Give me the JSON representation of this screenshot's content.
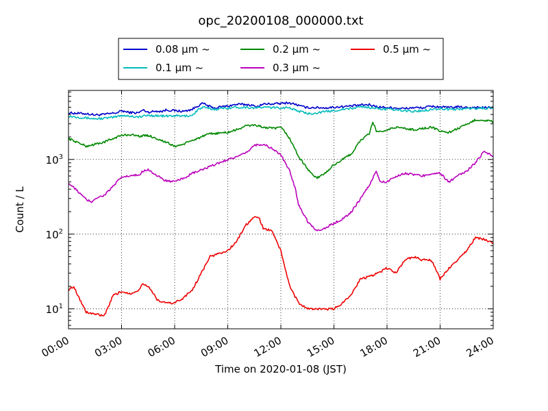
{
  "chart_data": {
    "type": "line",
    "title": "opc_20200108_000000.txt",
    "xlabel": "Time on 2020-01-08 (JST)",
    "ylabel": "Count / L",
    "x_unit": "hours",
    "xlim": [
      0,
      24
    ],
    "ylim": [
      5.4,
      8400
    ],
    "y_scale": "log",
    "grid": true,
    "legend_position": "top-center-outside",
    "x_ticks": [
      {
        "value": 0,
        "label": "00:00"
      },
      {
        "value": 3,
        "label": "03:00"
      },
      {
        "value": 6,
        "label": "06:00"
      },
      {
        "value": 9,
        "label": "09:00"
      },
      {
        "value": 12,
        "label": "12:00"
      },
      {
        "value": 15,
        "label": "15:00"
      },
      {
        "value": 18,
        "label": "18:00"
      },
      {
        "value": 21,
        "label": "21:00"
      },
      {
        "value": 24,
        "label": "24:00"
      }
    ],
    "y_ticks": [
      {
        "value": 10,
        "base": "10",
        "exp": "1"
      },
      {
        "value": 100,
        "base": "10",
        "exp": "2"
      },
      {
        "value": 1000,
        "base": "10",
        "exp": "3"
      }
    ],
    "series": [
      {
        "name": "0.08 μm ~",
        "color": "#0000cc",
        "points": [
          [
            0,
            4200
          ],
          [
            1,
            4100
          ],
          [
            1.5,
            3950
          ],
          [
            2,
            4000
          ],
          [
            2.5,
            4150
          ],
          [
            2.8,
            4250
          ],
          [
            3,
            4500
          ],
          [
            3.3,
            4300
          ],
          [
            3.8,
            4200
          ],
          [
            4,
            4250
          ],
          [
            4.2,
            4600
          ],
          [
            4.5,
            4300
          ],
          [
            5,
            4450
          ],
          [
            5.3,
            4400
          ],
          [
            5.5,
            4600
          ],
          [
            6,
            4500
          ],
          [
            6.5,
            4400
          ],
          [
            7,
            4700
          ],
          [
            7.3,
            5200
          ],
          [
            7.6,
            5650
          ],
          [
            7.9,
            5200
          ],
          [
            8.2,
            4850
          ],
          [
            8.6,
            5050
          ],
          [
            9,
            5200
          ],
          [
            9.5,
            5450
          ],
          [
            10,
            5450
          ],
          [
            10.3,
            5350
          ],
          [
            10.6,
            5050
          ],
          [
            11,
            5500
          ],
          [
            11.5,
            5550
          ],
          [
            12,
            5600
          ],
          [
            12.4,
            5750
          ],
          [
            12.8,
            5500
          ],
          [
            13.2,
            5100
          ],
          [
            13.5,
            4950
          ],
          [
            14,
            4950
          ],
          [
            14.5,
            4900
          ],
          [
            15,
            5000
          ],
          [
            15.5,
            5100
          ],
          [
            16,
            5200
          ],
          [
            16.5,
            5350
          ],
          [
            17,
            5400
          ],
          [
            17.5,
            5050
          ],
          [
            18,
            4950
          ],
          [
            18.5,
            4900
          ],
          [
            19,
            4800
          ],
          [
            19.5,
            4950
          ],
          [
            20,
            4900
          ],
          [
            20.5,
            5150
          ],
          [
            21,
            5050
          ],
          [
            21.5,
            4950
          ],
          [
            22,
            5050
          ],
          [
            22.5,
            4950
          ],
          [
            23,
            5000
          ],
          [
            23.5,
            4950
          ],
          [
            24,
            4900
          ]
        ]
      },
      {
        "name": "0.1 μm ~",
        "color": "#00bbbb",
        "points": [
          [
            0,
            3800
          ],
          [
            0.5,
            3700
          ],
          [
            1,
            3600
          ],
          [
            1.5,
            3500
          ],
          [
            2,
            3550
          ],
          [
            2.5,
            3650
          ],
          [
            3,
            3900
          ],
          [
            3.5,
            3800
          ],
          [
            4,
            3700
          ],
          [
            4.5,
            3900
          ],
          [
            5,
            3850
          ],
          [
            5.5,
            3800
          ],
          [
            6,
            3850
          ],
          [
            6.5,
            3800
          ],
          [
            7,
            3900
          ],
          [
            7.3,
            4600
          ],
          [
            7.6,
            5000
          ],
          [
            7.9,
            4800
          ],
          [
            8.2,
            4700
          ],
          [
            8.6,
            4800
          ],
          [
            9,
            4900
          ],
          [
            9.5,
            5000
          ],
          [
            10,
            5000
          ],
          [
            10.5,
            4900
          ],
          [
            11,
            5000
          ],
          [
            11.5,
            4950
          ],
          [
            12,
            4900
          ],
          [
            12.4,
            5000
          ],
          [
            12.8,
            4600
          ],
          [
            13.2,
            4300
          ],
          [
            13.5,
            4100
          ],
          [
            14,
            4200
          ],
          [
            14.5,
            4350
          ],
          [
            15,
            4500
          ],
          [
            15.5,
            4700
          ],
          [
            16,
            4800
          ],
          [
            16.5,
            5100
          ],
          [
            17,
            5000
          ],
          [
            17.5,
            4800
          ],
          [
            18,
            4700
          ],
          [
            18.5,
            4600
          ],
          [
            19,
            4500
          ],
          [
            19.5,
            4400
          ],
          [
            20,
            4500
          ],
          [
            20.5,
            4700
          ],
          [
            21,
            4800
          ],
          [
            21.5,
            4700
          ],
          [
            22,
            4700
          ],
          [
            22.5,
            4800
          ],
          [
            23,
            4800
          ],
          [
            23.5,
            4850
          ],
          [
            24,
            4800
          ]
        ]
      },
      {
        "name": "0.2 μm ~",
        "color": "#008800",
        "points": [
          [
            0,
            1900
          ],
          [
            0.5,
            1700
          ],
          [
            1,
            1500
          ],
          [
            1.5,
            1600
          ],
          [
            2,
            1700
          ],
          [
            2.5,
            1900
          ],
          [
            3,
            2100
          ],
          [
            3.5,
            2150
          ],
          [
            4,
            2050
          ],
          [
            4.5,
            2100
          ],
          [
            5,
            1900
          ],
          [
            5.5,
            1700
          ],
          [
            6,
            1500
          ],
          [
            6.5,
            1600
          ],
          [
            7,
            1800
          ],
          [
            7.5,
            2000
          ],
          [
            8,
            2200
          ],
          [
            8.5,
            2250
          ],
          [
            9,
            2300
          ],
          [
            9.5,
            2500
          ],
          [
            10,
            2800
          ],
          [
            10.5,
            2900
          ],
          [
            11,
            2700
          ],
          [
            11.5,
            2600
          ],
          [
            12,
            2650
          ],
          [
            12.2,
            2400
          ],
          [
            12.5,
            1900
          ],
          [
            13,
            1100
          ],
          [
            13.5,
            750
          ],
          [
            14,
            560
          ],
          [
            14.5,
            650
          ],
          [
            15,
            850
          ],
          [
            15.5,
            1000
          ],
          [
            16,
            1200
          ],
          [
            16.5,
            1800
          ],
          [
            17,
            2200
          ],
          [
            17.2,
            3200
          ],
          [
            17.4,
            2400
          ],
          [
            17.8,
            2300
          ],
          [
            18,
            2500
          ],
          [
            18.5,
            2700
          ],
          [
            19,
            2600
          ],
          [
            19.5,
            2500
          ],
          [
            20,
            2600
          ],
          [
            20.5,
            2700
          ],
          [
            21,
            2400
          ],
          [
            21.5,
            2300
          ],
          [
            22,
            2600
          ],
          [
            22.5,
            2900
          ],
          [
            23,
            3400
          ],
          [
            23.5,
            3350
          ],
          [
            24,
            3200
          ]
        ]
      },
      {
        "name": "0.3 μm ~",
        "color": "#bb00bb",
        "points": [
          [
            0,
            480
          ],
          [
            0.5,
            380
          ],
          [
            1,
            290
          ],
          [
            1.3,
            270
          ],
          [
            1.5,
            300
          ],
          [
            2,
            330
          ],
          [
            2.5,
            430
          ],
          [
            3,
            580
          ],
          [
            3.5,
            600
          ],
          [
            4,
            620
          ],
          [
            4.2,
            700
          ],
          [
            4.5,
            740
          ],
          [
            5,
            600
          ],
          [
            5.5,
            520
          ],
          [
            6,
            500
          ],
          [
            6.5,
            560
          ],
          [
            7,
            650
          ],
          [
            7.5,
            720
          ],
          [
            8,
            800
          ],
          [
            8.5,
            900
          ],
          [
            9,
            1000
          ],
          [
            9.5,
            1080
          ],
          [
            10,
            1200
          ],
          [
            10.5,
            1550
          ],
          [
            11,
            1600
          ],
          [
            11.5,
            1400
          ],
          [
            12,
            1150
          ],
          [
            12.5,
            700
          ],
          [
            12.8,
            420
          ],
          [
            13,
            250
          ],
          [
            13.5,
            150
          ],
          [
            14,
            112
          ],
          [
            14.5,
            120
          ],
          [
            15,
            140
          ],
          [
            15.5,
            160
          ],
          [
            16,
            200
          ],
          [
            16.5,
            300
          ],
          [
            17,
            450
          ],
          [
            17.2,
            570
          ],
          [
            17.4,
            700
          ],
          [
            17.6,
            500
          ],
          [
            18,
            500
          ],
          [
            18.5,
            600
          ],
          [
            19,
            650
          ],
          [
            19.5,
            630
          ],
          [
            20,
            600
          ],
          [
            20.5,
            650
          ],
          [
            21,
            650
          ],
          [
            21.5,
            500
          ],
          [
            22,
            600
          ],
          [
            22.5,
            700
          ],
          [
            23,
            900
          ],
          [
            23.5,
            1300
          ],
          [
            24,
            1100
          ]
        ]
      },
      {
        "name": "0.5 μm ~",
        "color": "#ee0000",
        "points": [
          [
            0,
            18
          ],
          [
            0.3,
            20
          ],
          [
            0.6,
            14
          ],
          [
            1,
            9
          ],
          [
            1.5,
            8.5
          ],
          [
            2,
            8
          ],
          [
            2.3,
            11
          ],
          [
            2.5,
            15
          ],
          [
            3,
            17
          ],
          [
            3.5,
            16
          ],
          [
            4,
            18
          ],
          [
            4.2,
            22
          ],
          [
            4.5,
            20
          ],
          [
            4.8,
            16
          ],
          [
            5,
            13
          ],
          [
            5.5,
            12
          ],
          [
            6,
            12
          ],
          [
            6.5,
            14
          ],
          [
            7,
            18
          ],
          [
            7.5,
            30
          ],
          [
            8,
            50
          ],
          [
            8.5,
            55
          ],
          [
            9,
            60
          ],
          [
            9.5,
            80
          ],
          [
            10,
            130
          ],
          [
            10.5,
            170
          ],
          [
            10.8,
            160
          ],
          [
            11,
            120
          ],
          [
            11.5,
            110
          ],
          [
            12,
            60
          ],
          [
            12.5,
            20
          ],
          [
            13,
            12
          ],
          [
            13.5,
            10
          ],
          [
            14,
            10
          ],
          [
            14.5,
            9.8
          ],
          [
            15,
            10
          ],
          [
            15.5,
            12
          ],
          [
            16,
            16
          ],
          [
            16.5,
            25
          ],
          [
            17,
            27
          ],
          [
            17.5,
            30
          ],
          [
            18,
            35
          ],
          [
            18.5,
            30
          ],
          [
            19,
            45
          ],
          [
            19.5,
            50
          ],
          [
            20,
            45
          ],
          [
            20.5,
            45
          ],
          [
            21,
            25
          ],
          [
            21.5,
            35
          ],
          [
            22,
            45
          ],
          [
            22.5,
            60
          ],
          [
            23,
            90
          ],
          [
            23.5,
            85
          ],
          [
            24,
            75
          ]
        ]
      }
    ]
  }
}
